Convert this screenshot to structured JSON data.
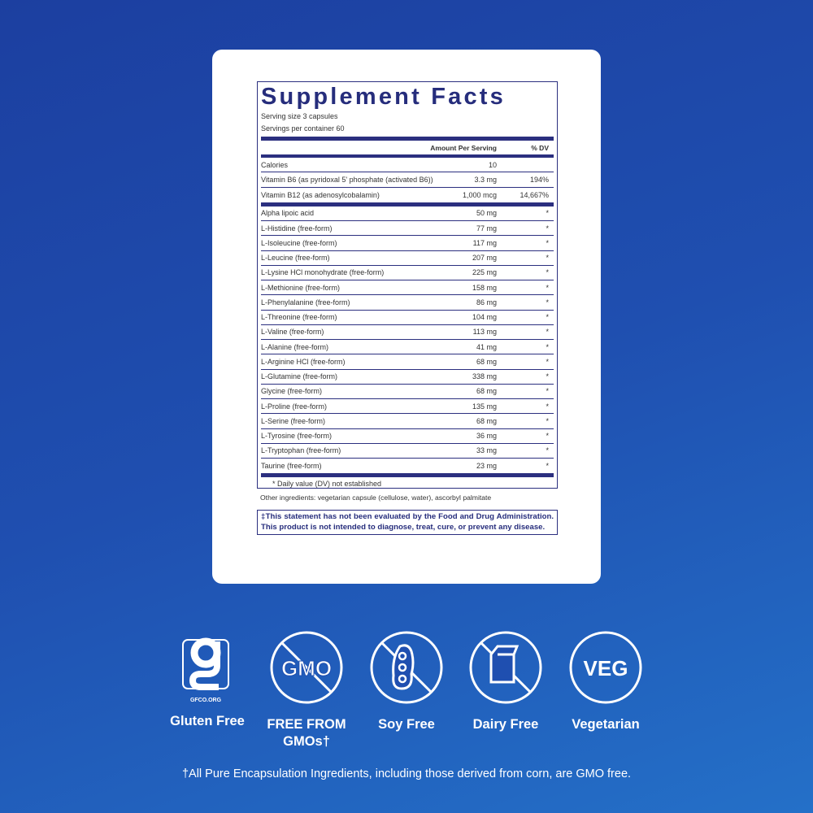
{
  "supplement_facts": {
    "title": "Supplement Facts",
    "serving_size": "Serving size  3 capsules",
    "servings_per_container": "Servings per container  60",
    "header": {
      "amount": "Amount Per Serving",
      "dv": "% DV"
    },
    "top_rows": [
      {
        "name": "Calories",
        "amount": "10",
        "dv": ""
      },
      {
        "name": "Vitamin B6 (as pyridoxal 5' phosphate (activated B6))",
        "amount": "3.3 mg",
        "dv": "194%"
      },
      {
        "name": "Vitamin B12 (as adenosylcobalamin)",
        "amount": "1,000 mcg",
        "dv": "14,667%"
      }
    ],
    "rows": [
      {
        "name": "Alpha lipoic acid",
        "amount": "50 mg",
        "dv": "*"
      },
      {
        "name": "L-Histidine (free-form)",
        "amount": "77 mg",
        "dv": "*"
      },
      {
        "name": "L-Isoleucine (free-form)",
        "amount": "117 mg",
        "dv": "*"
      },
      {
        "name": "L-Leucine (free-form)",
        "amount": "207 mg",
        "dv": "*"
      },
      {
        "name": "L-Lysine HCl monohydrate (free-form)",
        "amount": "225 mg",
        "dv": "*"
      },
      {
        "name": "L-Methionine (free-form)",
        "amount": "158 mg",
        "dv": "*"
      },
      {
        "name": "L-Phenylalanine (free-form)",
        "amount": "86 mg",
        "dv": "*"
      },
      {
        "name": "L-Threonine (free-form)",
        "amount": "104 mg",
        "dv": "*"
      },
      {
        "name": "L-Valine (free-form)",
        "amount": "113 mg",
        "dv": "*"
      },
      {
        "name": "L-Alanine (free-form)",
        "amount": "41 mg",
        "dv": "*"
      },
      {
        "name": "L-Arginine HCl (free-form)",
        "amount": "68 mg",
        "dv": "*"
      },
      {
        "name": "L-Glutamine (free-form)",
        "amount": "338 mg",
        "dv": "*"
      },
      {
        "name": "Glycine (free-form)",
        "amount": "68 mg",
        "dv": "*"
      },
      {
        "name": "L-Proline (free-form)",
        "amount": "135 mg",
        "dv": "*"
      },
      {
        "name": "L-Serine (free-form)",
        "amount": "68 mg",
        "dv": "*"
      },
      {
        "name": "L-Tyrosine (free-form)",
        "amount": "36 mg",
        "dv": "*"
      },
      {
        "name": "L-Tryptophan (free-form)",
        "amount": "33 mg",
        "dv": "*"
      },
      {
        "name": "Taurine (free-form)",
        "amount": "23 mg",
        "dv": "*"
      }
    ],
    "footnote": "* Daily value (DV) not established"
  },
  "other_ingredients": "Other ingredients: vegetarian capsule (cellulose, water), ascorbyl palmitate",
  "disclaimer": "‡This statement has not been evaluated by the Food and Drug Administration. This product is not intended to diagnose, treat, cure, or prevent any disease.",
  "badges": [
    {
      "icon": "gluten-free-gfco-icon",
      "label": "Gluten Free",
      "logo_text": "GFCO.ORG"
    },
    {
      "icon": "no-gmo-icon",
      "label": "FREE FROM GMOs†",
      "icon_text": "GMO"
    },
    {
      "icon": "no-soy-icon",
      "label": "Soy Free"
    },
    {
      "icon": "no-dairy-icon",
      "label": "Dairy Free"
    },
    {
      "icon": "vegetarian-icon",
      "label": "Vegetarian",
      "icon_text": "VEG"
    }
  ],
  "footer_note": "†All Pure Encapsulation Ingredients, including those derived from corn, are GMO free.",
  "colors": {
    "background": "#1f4fb0",
    "label_navy": "#2b2f7f"
  }
}
